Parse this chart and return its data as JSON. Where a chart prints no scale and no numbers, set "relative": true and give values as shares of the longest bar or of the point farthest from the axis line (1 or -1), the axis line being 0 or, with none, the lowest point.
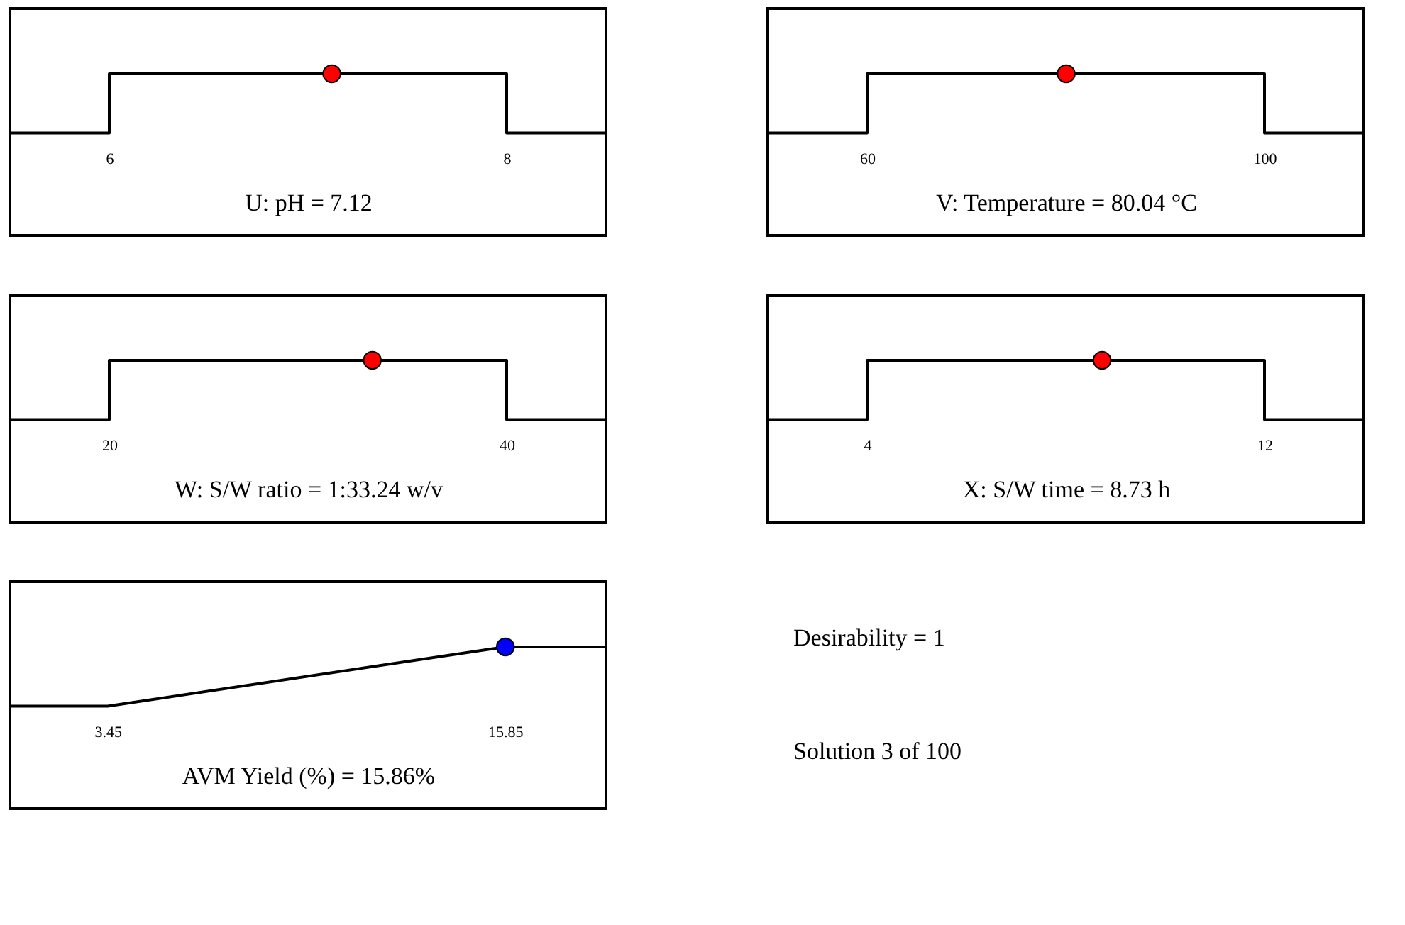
{
  "chart_data": [
    {
      "type": "line",
      "relative": true,
      "xlabel": "U: pH = 7.12",
      "xlim": [
        5.5,
        8.5
      ],
      "xticks": [
        6,
        8
      ],
      "grid": false,
      "series": [
        {
          "type": "line",
          "color": "#000000",
          "x": [
            5.5,
            6,
            6,
            8,
            8,
            8.5
          ],
          "values": [
            0,
            0,
            1,
            1,
            0,
            0
          ],
          "marker": "none"
        },
        {
          "type": "scatter",
          "color": "#ff0000",
          "x": [
            7.12
          ],
          "values": [
            1
          ],
          "marker": "circle"
        }
      ]
    },
    {
      "type": "line",
      "relative": true,
      "xlabel": "V:  Temperature = 80.04  °C",
      "xlim": [
        50,
        110
      ],
      "xticks": [
        60,
        100
      ],
      "grid": false,
      "series": [
        {
          "type": "line",
          "color": "#000000",
          "x": [
            50,
            60,
            60,
            100,
            100,
            110
          ],
          "values": [
            0,
            0,
            1,
            1,
            0,
            0
          ],
          "marker": "none"
        },
        {
          "type": "scatter",
          "color": "#ff0000",
          "x": [
            80.04
          ],
          "values": [
            1
          ],
          "marker": "circle"
        }
      ]
    },
    {
      "type": "line",
      "relative": true,
      "xlabel": "W: S/W ratio = 1:33.24   w/v",
      "xlim": [
        15,
        45
      ],
      "xticks": [
        20,
        40
      ],
      "grid": false,
      "series": [
        {
          "type": "line",
          "color": "#000000",
          "x": [
            15,
            20,
            20,
            40,
            40,
            45
          ],
          "values": [
            0,
            0,
            1,
            1,
            0,
            0
          ],
          "marker": "none"
        },
        {
          "type": "scatter",
          "color": "#ff0000",
          "x": [
            33.24
          ],
          "values": [
            1
          ],
          "marker": "circle"
        }
      ]
    },
    {
      "type": "line",
      "relative": true,
      "xlabel": "X: S/W time = 8.73  h",
      "xlim": [
        2,
        14
      ],
      "xticks": [
        4,
        12
      ],
      "grid": false,
      "series": [
        {
          "type": "line",
          "color": "#000000",
          "x": [
            2,
            4,
            4,
            12,
            12,
            14
          ],
          "values": [
            0,
            0,
            1,
            1,
            0,
            0
          ],
          "marker": "none"
        },
        {
          "type": "scatter",
          "color": "#ff0000",
          "x": [
            8.73
          ],
          "values": [
            1
          ],
          "marker": "circle"
        }
      ]
    },
    {
      "type": "line",
      "relative": true,
      "xlabel": "AVM Yield  (%) = 15.86%",
      "xlim": [
        0.4,
        19
      ],
      "xticks": [
        3.45,
        15.85
      ],
      "grid": false,
      "series": [
        {
          "type": "line",
          "color": "#000000",
          "x": [
            0.4,
            3.45,
            15.85,
            19
          ],
          "values": [
            0,
            0,
            1,
            1
          ],
          "marker": "none"
        },
        {
          "type": "scatter",
          "color": "#0000ff",
          "x": [
            15.86
          ],
          "values": [
            1
          ],
          "marker": "circle"
        }
      ]
    },
    {
      "type": "other",
      "annotations": [
        "Desirability = 1",
        "Solution 3 of 100"
      ]
    }
  ]
}
